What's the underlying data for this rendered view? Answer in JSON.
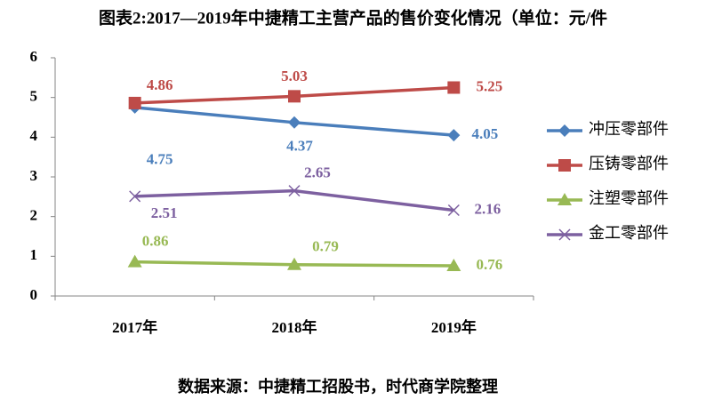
{
  "chart_data": {
    "type": "line",
    "title": "图表2:2017—2019年中捷精工主营产品的售价变化情况（单位：元/件",
    "note": "数据来源：中捷精工招股书，时代商学院整理",
    "categories": [
      "2017年",
      "2018年",
      "2019年"
    ],
    "series": [
      {
        "name": "冲压零部件",
        "color": "#4a7ebb",
        "marker": "diamond",
        "values": [
          4.75,
          4.37,
          4.05
        ]
      },
      {
        "name": "压铸零部件",
        "color": "#be4b48",
        "marker": "square",
        "values": [
          4.86,
          5.03,
          5.25
        ]
      },
      {
        "name": "注塑零部件",
        "color": "#98b954",
        "marker": "triangle",
        "values": [
          0.86,
          0.79,
          0.76
        ]
      },
      {
        "name": "金工零部件",
        "color": "#7d60a0",
        "marker": "x",
        "values": [
          2.51,
          2.65,
          2.16
        ]
      }
    ],
    "ylim": [
      0,
      6
    ],
    "yticks": [
      0,
      1,
      2,
      3,
      4,
      5,
      6
    ],
    "legend": "right"
  }
}
